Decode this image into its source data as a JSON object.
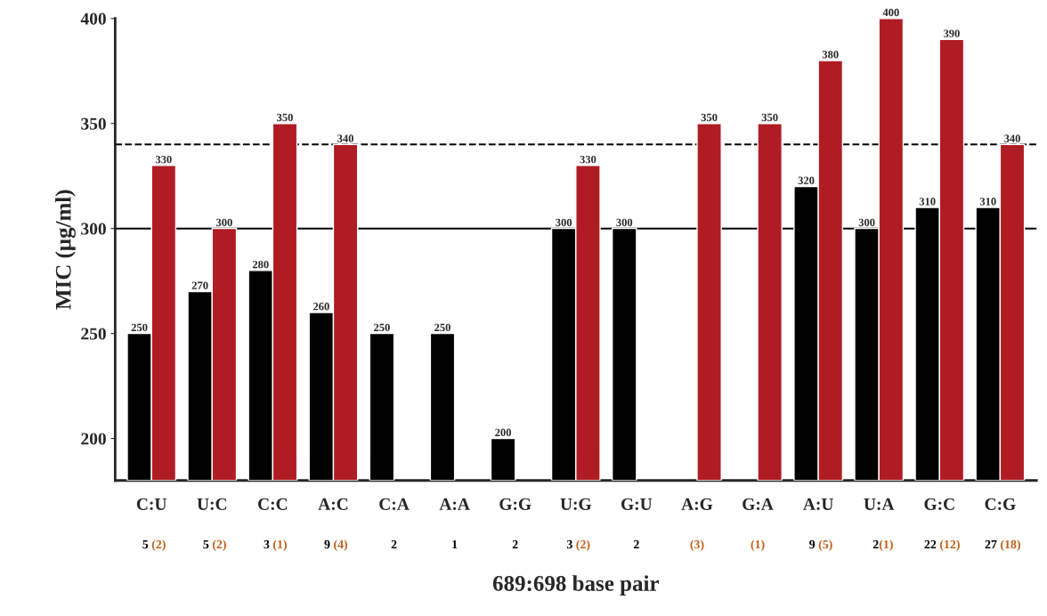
{
  "chart_data": {
    "type": "bar",
    "xlabel": "689:698 base pair",
    "ylabel": "MIC (μg/ml)",
    "categories": [
      "C:U\n5 (2)",
      "U:C\n5 (2)",
      "C:C\n3 (1)",
      "A:C\n9 (4)",
      "C:A\n2",
      "A:A\n1",
      "G:G\n2",
      "U:G\n3 (2)",
      "G:U\n2",
      "A:G\n(3)",
      "G:A\n(1)",
      "A:U\n9 (5)",
      "U:A\n2(1)",
      "G:C\n22 (12)",
      "C:G\n27 (18)"
    ],
    "series": [
      {
        "color": "#000000",
        "values": [
          250,
          270,
          280,
          260,
          250,
          250,
          200,
          300,
          300,
          null,
          null,
          320,
          300,
          310,
          310
        ]
      },
      {
        "color": "#b01c24",
        "values": [
          330,
          300,
          350,
          340,
          null,
          null,
          null,
          330,
          null,
          350,
          350,
          380,
          400,
          390,
          340
        ]
      }
    ],
    "data_labels": true,
    "ylim": [
      180,
      400
    ],
    "yticks": [
      200,
      250,
      300,
      350,
      400
    ],
    "ref_lines": [
      {
        "axis": "y",
        "value": 300,
        "line_style": "solid",
        "color": "#000000"
      },
      {
        "axis": "y",
        "value": 340,
        "line_style": "dashed",
        "color": "#000000"
      }
    ],
    "grid": false,
    "legend": false
  }
}
